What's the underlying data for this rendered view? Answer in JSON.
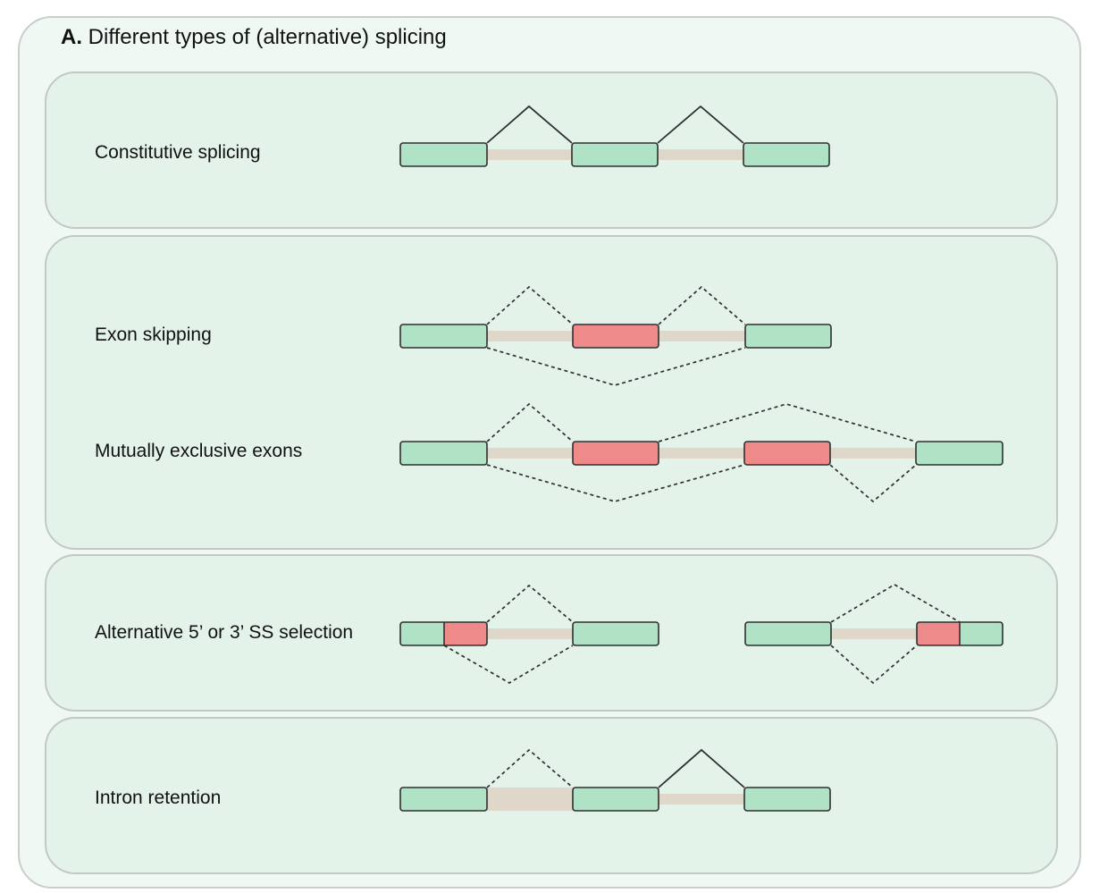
{
  "title": {
    "letter": "A.",
    "text": "Different types of  (alternative) splicing"
  },
  "colors": {
    "constitutive_exon": "#b0e2c6",
    "alternative_exon": "#ef8a8a",
    "intron": "#e0d7cb",
    "outline": "#2f2f2f",
    "panel_fill": "#e4f3ea",
    "background_fill": "#eff8f3"
  },
  "rows": [
    {
      "id": "constitutive",
      "label": "Constitutive splicing"
    },
    {
      "id": "exon-skipping",
      "label": "Exon skipping"
    },
    {
      "id": "mutually-exclusive",
      "label": "Mutually exclusive exons"
    },
    {
      "id": "alt-ss",
      "label": "Alternative 5’ or 3’ SS selection"
    },
    {
      "id": "intron-retention",
      "label": "Intron retention"
    }
  ]
}
